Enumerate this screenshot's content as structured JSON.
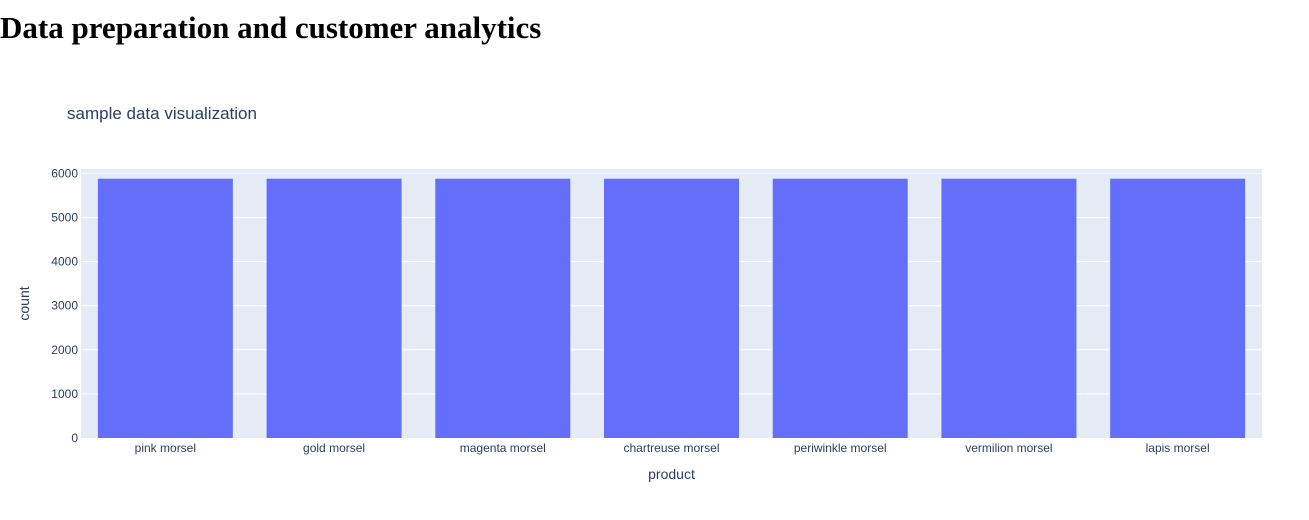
{
  "page": {
    "heading": "Data preparation and customer analytics"
  },
  "colors": {
    "plot_bg": "#e5ecf6",
    "bar": "#636efa",
    "grid": "#ffffff",
    "text": "#2a3f5f"
  },
  "chart_data": {
    "type": "bar",
    "title": "sample data visualization",
    "xlabel": "product",
    "ylabel": "count",
    "categories": [
      "pink morsel",
      "gold morsel",
      "magenta morsel",
      "chartreuse morsel",
      "periwinkle morsel",
      "vermilion morsel",
      "lapis morsel"
    ],
    "values": [
      5880,
      5880,
      5880,
      5880,
      5880,
      5880,
      5880
    ],
    "ylim": [
      0,
      6100
    ],
    "yticks": [
      0,
      1000,
      2000,
      3000,
      4000,
      5000,
      6000
    ],
    "grid": true,
    "legend": false
  }
}
